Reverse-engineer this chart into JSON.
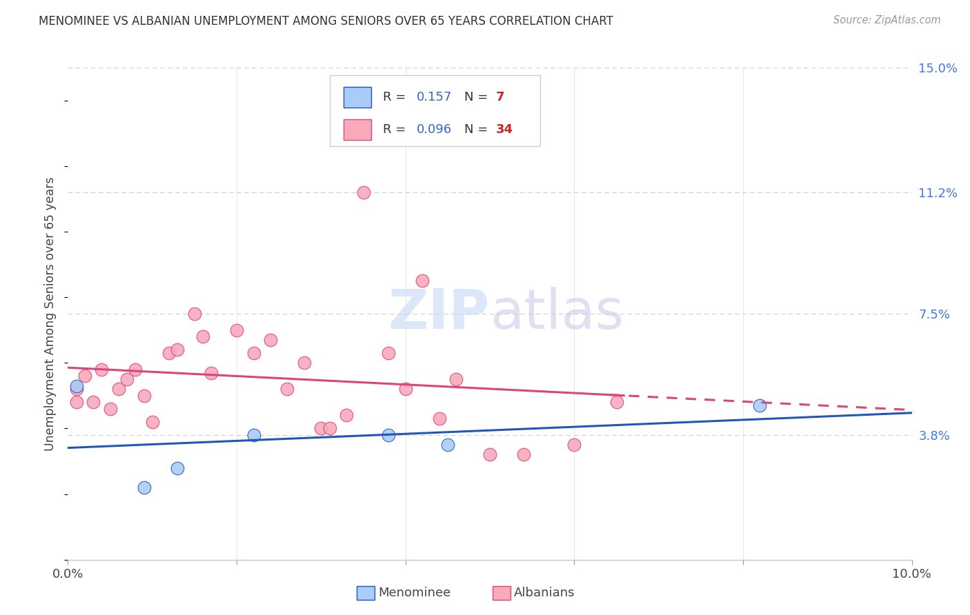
{
  "title": "MENOMINEE VS ALBANIAN UNEMPLOYMENT AMONG SENIORS OVER 65 YEARS CORRELATION CHART",
  "source": "Source: ZipAtlas.com",
  "ylabel": "Unemployment Among Seniors over 65 years",
  "xlim": [
    0.0,
    0.1
  ],
  "ylim": [
    0.0,
    0.15
  ],
  "ytick_labels_right": [
    "15.0%",
    "11.2%",
    "7.5%",
    "3.8%"
  ],
  "ytick_vals_right": [
    0.15,
    0.112,
    0.075,
    0.038
  ],
  "menominee_color": "#aaccf8",
  "albanian_color": "#f8aabb",
  "menominee_line_color": "#2255bb",
  "albanian_line_color": "#dd4477",
  "R_menominee": 0.157,
  "N_menominee": 7,
  "R_albanian": 0.096,
  "N_albanian": 34,
  "menominee_x": [
    0.001,
    0.009,
    0.013,
    0.022,
    0.038,
    0.045,
    0.082
  ],
  "menominee_y": [
    0.053,
    0.022,
    0.028,
    0.038,
    0.038,
    0.035,
    0.047
  ],
  "albanian_x": [
    0.001,
    0.001,
    0.002,
    0.003,
    0.004,
    0.005,
    0.006,
    0.007,
    0.008,
    0.009,
    0.01,
    0.012,
    0.013,
    0.015,
    0.016,
    0.017,
    0.02,
    0.022,
    0.024,
    0.026,
    0.028,
    0.03,
    0.031,
    0.033,
    0.035,
    0.038,
    0.04,
    0.042,
    0.044,
    0.046,
    0.05,
    0.054,
    0.06,
    0.065
  ],
  "albanian_y": [
    0.052,
    0.048,
    0.056,
    0.048,
    0.058,
    0.046,
    0.052,
    0.055,
    0.058,
    0.05,
    0.042,
    0.063,
    0.064,
    0.075,
    0.068,
    0.057,
    0.07,
    0.063,
    0.067,
    0.052,
    0.06,
    0.04,
    0.04,
    0.044,
    0.112,
    0.063,
    0.052,
    0.085,
    0.043,
    0.055,
    0.032,
    0.032,
    0.035,
    0.048
  ],
  "background_color": "#ffffff",
  "grid_color": "#cccccc",
  "r_text_color": "#3366cc",
  "n_text_color": "#cc2222",
  "label_color": "#444444",
  "right_axis_color": "#4477dd"
}
